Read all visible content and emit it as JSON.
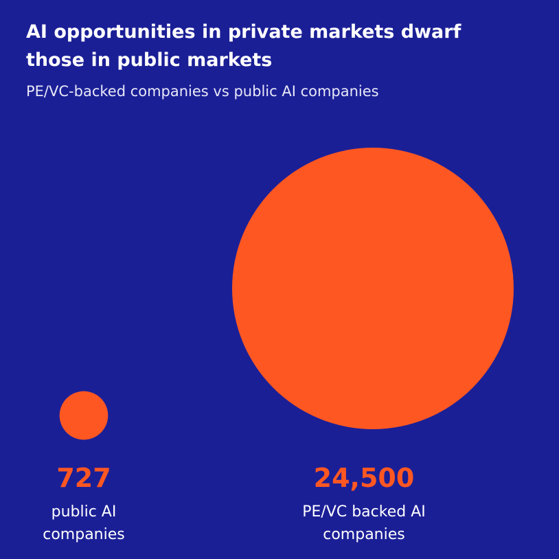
{
  "chart_data": {
    "type": "bubble",
    "title": "AI opportunities in private markets dwarf those in public markets",
    "subtitle": "PE/VC-backed companies vs public AI companies",
    "categories": [
      "public AI companies",
      "PE/VC backed AI companies"
    ],
    "values": [
      727,
      24500
    ],
    "value_labels": [
      "727",
      "24,500"
    ],
    "color": "#ff5722"
  }
}
